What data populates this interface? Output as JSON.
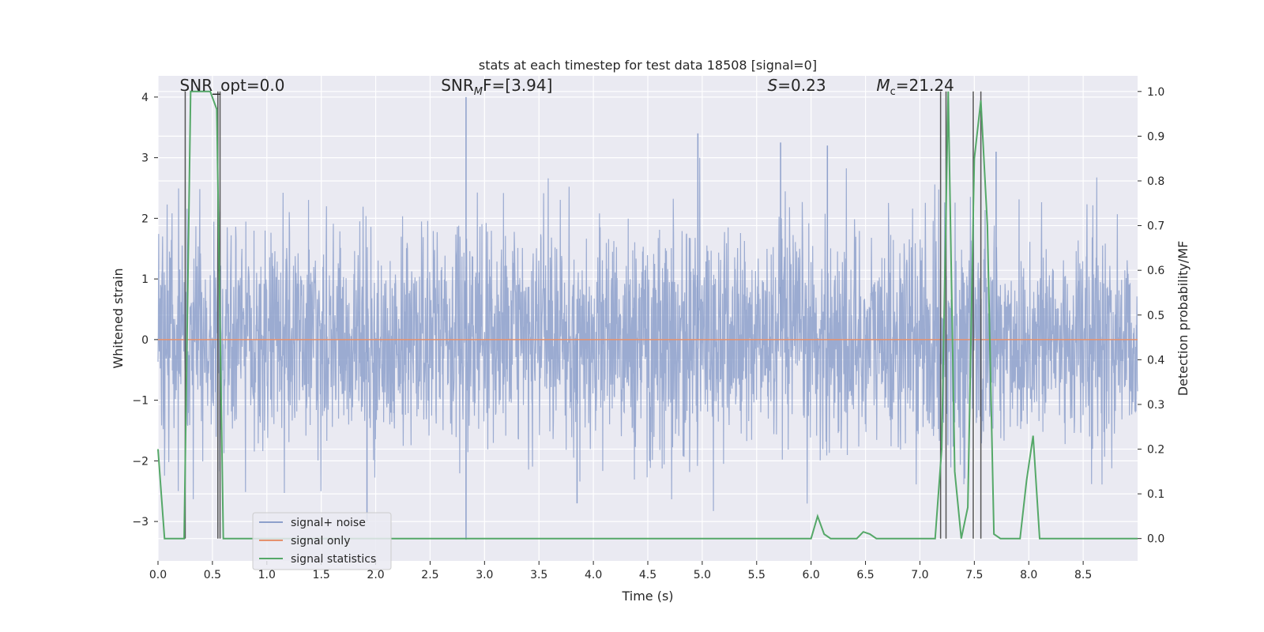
{
  "chart_data": {
    "type": "line",
    "title": "stats at each timestep for test data 18508 [signal=0]",
    "xlabel": "Time (s)",
    "ylabel": "Whitened strain",
    "ylabel_right": "Detection probability/MF",
    "xlim": [
      0,
      9.0
    ],
    "ylim": [
      -3.65,
      4.35
    ],
    "ylim_right": [
      -0.05,
      1.035
    ],
    "x_ticks": [
      0.0,
      0.5,
      1.0,
      1.5,
      2.0,
      2.5,
      3.0,
      3.5,
      4.0,
      4.5,
      5.0,
      5.5,
      6.0,
      6.5,
      7.0,
      7.5,
      8.0,
      8.5
    ],
    "x_tick_labels": [
      "0.0",
      "0.5",
      "1.0",
      "1.5",
      "2.0",
      "2.5",
      "3.0",
      "3.5",
      "4.0",
      "4.5",
      "5.0",
      "5.5",
      "6.0",
      "6.5",
      "7.0",
      "7.5",
      "8.0",
      "8.5"
    ],
    "y_ticks": [
      -3,
      -2,
      -1,
      0,
      1,
      2,
      3,
      4
    ],
    "y_tick_labels": [
      "−3",
      "−2",
      "−1",
      "0",
      "1",
      "2",
      "3",
      "4"
    ],
    "y_ticks_right": [
      0.0,
      0.1,
      0.2,
      0.3,
      0.4,
      0.5,
      0.6,
      0.7,
      0.8,
      0.9,
      1.0
    ],
    "y_tick_labels_right": [
      "0.0",
      "0.1",
      "0.2",
      "0.3",
      "0.4",
      "0.5",
      "0.6",
      "0.7",
      "0.8",
      "0.9",
      "1.0"
    ],
    "grid": true,
    "legend_position": "lower-left",
    "annotations": [
      {
        "text": "SNR_opt=0.0",
        "x": 0.2,
        "y": 4.1
      },
      {
        "html": "SNR<tspan font-style=\"italic\" font-size=\"13\" dy=\"5\">M</tspan><tspan dy=\"-5\">F=[3.94]</tspan>",
        "text": "SNR_MF=[3.94]",
        "x": 2.6,
        "y": 4.1
      },
      {
        "text": "S=0.23",
        "x": 5.6,
        "y": 4.1
      },
      {
        "text": "Mc=21.24",
        "x": 6.6,
        "y": 4.1
      }
    ],
    "series": [
      {
        "name": "signal+ noise",
        "color": "#8da0cb",
        "kind": "noise",
        "amplitude_sigma": 0.9,
        "spikes": [
          {
            "x": 2.83,
            "y": 4.0
          },
          {
            "x": 2.83,
            "y": -3.3
          },
          {
            "x": 4.96,
            "y": 3.4
          },
          {
            "x": 5.72,
            "y": 3.25
          },
          {
            "x": 6.15,
            "y": 3.2
          },
          {
            "x": 7.7,
            "y": 3.1
          },
          {
            "x": 0.55,
            "y": -3.1
          },
          {
            "x": 1.92,
            "y": -3.0
          },
          {
            "x": 3.85,
            "y": -2.7
          }
        ]
      },
      {
        "name": "signal only",
        "color": "#e5916e",
        "values_y": 0.0
      },
      {
        "name": "signal statistics",
        "color": "#55a868",
        "axis": "right",
        "x": [
          0.0,
          0.06,
          0.12,
          0.18,
          0.24,
          0.3,
          0.36,
          0.42,
          0.48,
          0.54,
          0.6,
          0.66,
          5.9,
          6.0,
          6.06,
          6.12,
          6.18,
          6.3,
          6.42,
          6.48,
          6.54,
          6.6,
          6.66,
          6.72,
          6.78,
          7.14,
          7.2,
          7.26,
          7.32,
          7.38,
          7.44,
          7.5,
          7.56,
          7.62,
          7.68,
          7.74,
          7.8,
          7.86,
          7.92,
          7.98,
          8.04,
          8.1,
          8.16,
          8.22,
          9.0
        ],
        "y": [
          0.2,
          0.0,
          0.0,
          0.0,
          0.0,
          1.0,
          1.0,
          1.0,
          1.0,
          0.96,
          0.0,
          0.0,
          0.0,
          0.0,
          0.05,
          0.01,
          0.0,
          0.0,
          0.0,
          0.015,
          0.01,
          0.0,
          0.0,
          0.0,
          0.0,
          0.0,
          0.2,
          1.0,
          0.15,
          0.0,
          0.07,
          0.85,
          0.98,
          0.7,
          0.01,
          0.0,
          0.0,
          0.0,
          0.0,
          0.13,
          0.23,
          0.0,
          0.0,
          0.0,
          0.0
        ]
      }
    ],
    "vertical_markers": [
      0.25,
      0.55,
      0.57,
      7.19,
      7.24,
      7.49,
      7.56
    ]
  }
}
